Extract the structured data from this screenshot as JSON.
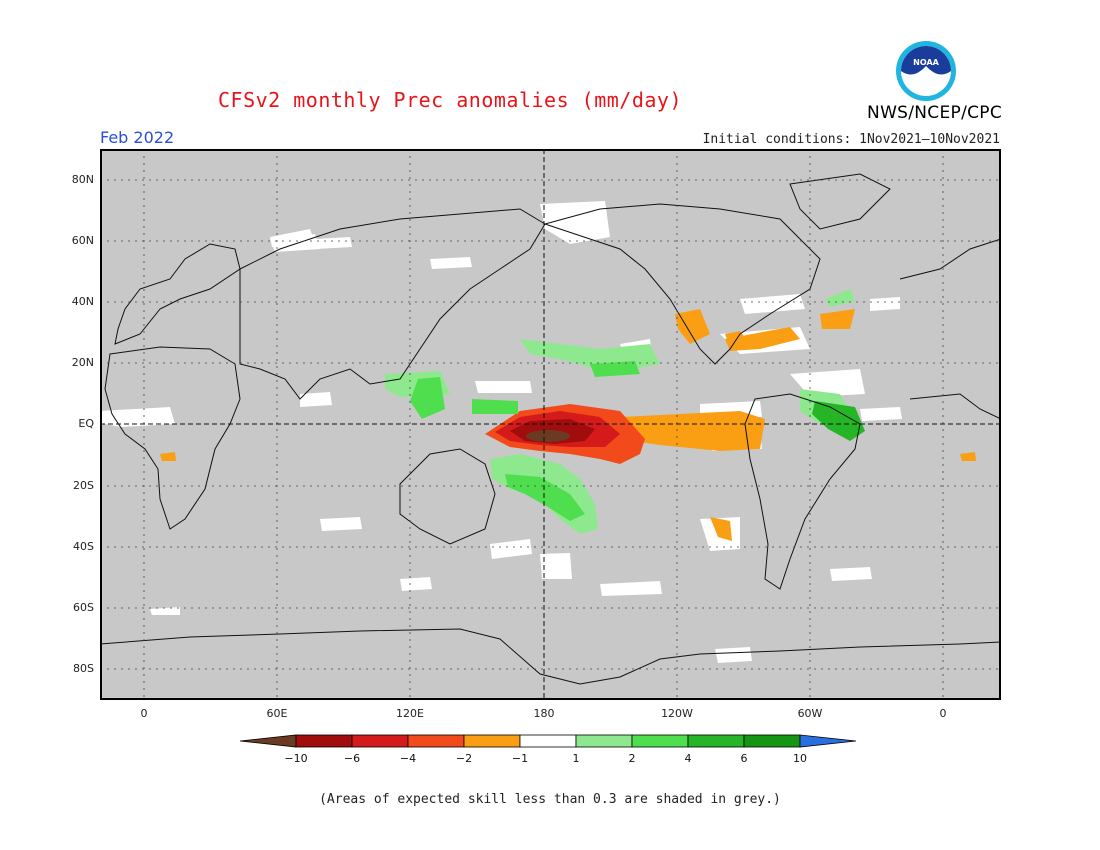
{
  "title": "CFSv2 monthly Prec anomalies (mm/day)",
  "organization": "NWS/NCEP/CPC",
  "logo_text": "NOAA",
  "valid_month": "Feb 2022",
  "initial_conditions": "Initial conditions: 1Nov2021–10Nov2021",
  "footnote": "(Areas of expected skill less than 0.3 are shaded in grey.)",
  "lat_labels": [
    "80N",
    "60N",
    "40N",
    "20N",
    "EQ",
    "20S",
    "40S",
    "60S",
    "80S"
  ],
  "lon_labels": [
    "0",
    "60E",
    "120E",
    "180",
    "120W",
    "60W",
    "0"
  ],
  "colorbar": {
    "tick_labels": [
      "−10",
      "−6",
      "−4",
      "−2",
      "−1",
      "1",
      "2",
      "4",
      "6",
      "10"
    ],
    "colors": [
      "#6b3a23",
      "#a10d0d",
      "#d41a1a",
      "#f24a1a",
      "#fa9e14",
      "#ffffff",
      "#8ee98e",
      "#4ede4e",
      "#26b526",
      "#149614",
      "#2a6fe0"
    ]
  },
  "colors": {
    "land_grey": "#c8c8c8",
    "title_red": "#e8141a",
    "month_blue": "#2a4ed8"
  }
}
